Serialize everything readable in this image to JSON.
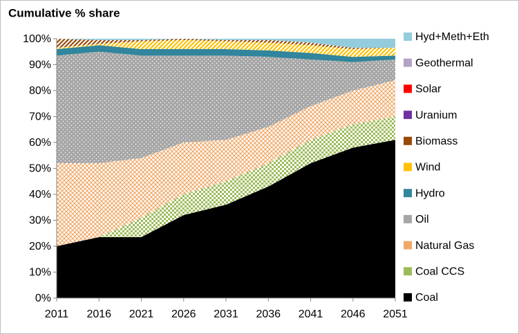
{
  "chart_data": {
    "type": "stacked-area",
    "title": "Cumulative % share",
    "x": [
      2011,
      2016,
      2021,
      2026,
      2031,
      2036,
      2041,
      2046,
      2051
    ],
    "xlim": [
      2011,
      2051
    ],
    "xticks": [
      2011,
      2016,
      2021,
      2026,
      2031,
      2036,
      2041,
      2046,
      2051
    ],
    "ylim": [
      0,
      100
    ],
    "yticks": [
      {
        "value": 0,
        "label": "0%"
      },
      {
        "value": 10,
        "label": "10%"
      },
      {
        "value": 20,
        "label": "20%"
      },
      {
        "value": 30,
        "label": "30%"
      },
      {
        "value": 40,
        "label": "40%"
      },
      {
        "value": 50,
        "label": "50%"
      },
      {
        "value": 60,
        "label": "60%"
      },
      {
        "value": 70,
        "label": "70%"
      },
      {
        "value": 80,
        "label": "80%"
      },
      {
        "value": 90,
        "label": "90%"
      },
      {
        "value": 100,
        "label": "100%"
      }
    ],
    "legend": "right",
    "series": [
      {
        "name": "Coal",
        "color": "#000000",
        "values": [
          20,
          23.5,
          23.5,
          32,
          36,
          43,
          52,
          58,
          61
        ]
      },
      {
        "name": "Coal CCS",
        "color": "#9bbb59",
        "values": [
          0,
          0,
          7.5,
          8,
          9,
          9,
          9,
          9,
          9
        ]
      },
      {
        "name": "Natural Gas",
        "color": "#f0a868",
        "values": [
          32,
          28.5,
          23,
          20,
          16,
          14,
          13,
          13,
          14
        ]
      },
      {
        "name": "Oil",
        "color": "#a6a6a6",
        "values": [
          41.5,
          43,
          39.5,
          33.5,
          32.5,
          27,
          18,
          11,
          8
        ]
      },
      {
        "name": "Hydro",
        "color": "#31859c",
        "values": [
          2.5,
          2.5,
          2.5,
          2.5,
          2.5,
          2.5,
          2.5,
          2,
          1.5
        ]
      },
      {
        "name": "Wind",
        "color": "#ffc000",
        "values": [
          0.5,
          0.5,
          3,
          3.5,
          3,
          3,
          3,
          3,
          3
        ]
      },
      {
        "name": "Biomass",
        "color": "#984807",
        "values": [
          3.5,
          1.5,
          0.5,
          0.5,
          0.5,
          1,
          1,
          0.5,
          0
        ]
      },
      {
        "name": "Uranium",
        "color": "#7030a0",
        "values": [
          0,
          0,
          0,
          0,
          0,
          0,
          0,
          0,
          0
        ]
      },
      {
        "name": "Solar",
        "color": "#ff0000",
        "values": [
          0,
          0,
          0,
          0,
          0,
          0,
          0,
          0,
          0
        ]
      },
      {
        "name": "Geothermal",
        "color": "#b3a2c7",
        "values": [
          0,
          0,
          0,
          0,
          0,
          0,
          0,
          0,
          0
        ]
      },
      {
        "name": "Hyd+Meth+Eth",
        "color": "#93cddd",
        "values": [
          0,
          0.5,
          0.5,
          0,
          0.5,
          0.5,
          1.5,
          3.5,
          3.5
        ]
      }
    ]
  }
}
